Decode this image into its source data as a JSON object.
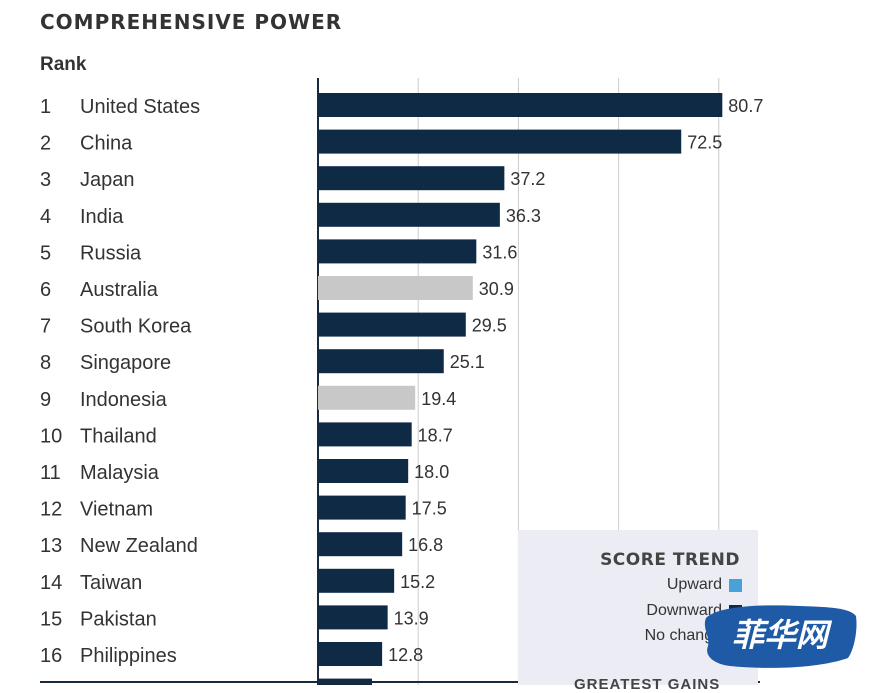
{
  "title": "COMPREHENSIVE POWER",
  "rank_header": "Rank",
  "colors": {
    "default_bar": "#0f2a45",
    "highlight_bar": "#c8c8c8",
    "upward": "#4aa0d8",
    "downward": "#0f2a45",
    "grid": "#cccccc",
    "text": "#333333",
    "legend_bg": "#ebecf4"
  },
  "legend": {
    "title": "SCORE TREND",
    "items": [
      {
        "label": "Upward",
        "color": "#4aa0d8"
      },
      {
        "label": "Downward",
        "color": "#0f2a45"
      },
      {
        "label": "No change",
        "color": "#c8c8c8"
      }
    ],
    "more": "GREATEST GAINS"
  },
  "watermark": "菲华网",
  "chart_data": {
    "type": "bar",
    "orientation": "horizontal",
    "xlim": [
      0,
      100
    ],
    "grid": true,
    "categories": [
      "United States",
      "China",
      "Japan",
      "India",
      "Russia",
      "Australia",
      "South Korea",
      "Singapore",
      "Indonesia",
      "Thailand",
      "Malaysia",
      "Vietnam",
      "New Zealand",
      "Taiwan",
      "Pakistan",
      "Philippines"
    ],
    "ranks": [
      "1",
      "2",
      "3",
      "4",
      "5",
      "6",
      "7",
      "8",
      "9",
      "10",
      "11",
      "12",
      "13",
      "14",
      "15",
      "16"
    ],
    "values": [
      80.7,
      72.5,
      37.2,
      36.3,
      31.6,
      30.9,
      29.5,
      25.1,
      19.4,
      18.7,
      18.0,
      17.5,
      16.8,
      15.2,
      13.9,
      12.8
    ],
    "value_labels": [
      "80.7",
      "72.5",
      "37.2",
      "36.3",
      "31.6",
      "30.9",
      "29.5",
      "25.1",
      "19.4",
      "18.7",
      "18.0",
      "17.5",
      "16.8",
      "15.2",
      "13.9",
      "12.8"
    ],
    "trend": [
      "down",
      "down",
      "down",
      "down",
      "down",
      "none",
      "down",
      "down",
      "none",
      "down",
      "down",
      "down",
      "down",
      "down",
      "down",
      "down"
    ]
  }
}
